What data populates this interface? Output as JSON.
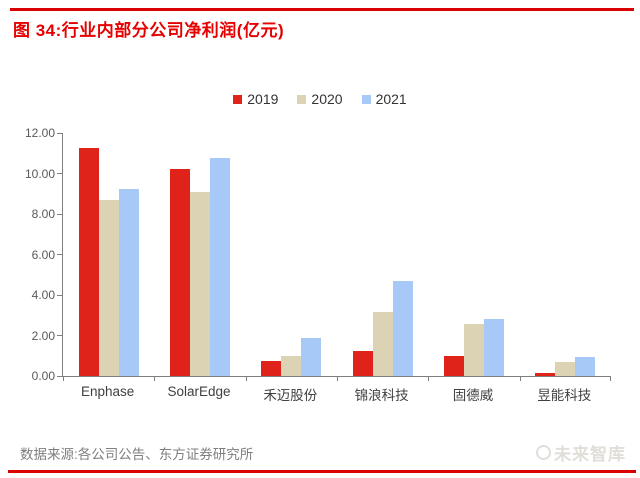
{
  "figure": {
    "title": "图 34:行业内部分公司净利润(亿元)",
    "source": "数据来源:各公司公告、东方证券研究所",
    "watermark": "未来智库"
  },
  "chart_data": {
    "type": "bar",
    "title": "行业内部分公司净利润(亿元)",
    "categories": [
      "Enphase",
      "SolarEdge",
      "禾迈股份",
      "锦浪科技",
      "固德威",
      "昱能科技"
    ],
    "series": [
      {
        "name": "2019",
        "color": "#e0231a",
        "values": [
          11.25,
          10.2,
          0.75,
          1.25,
          1.0,
          0.15
        ]
      },
      {
        "name": "2020",
        "color": "#dcd3b4",
        "values": [
          8.7,
          9.1,
          1.0,
          3.15,
          2.55,
          0.7
        ]
      },
      {
        "name": "2021",
        "color": "#a6c9f8",
        "values": [
          9.25,
          10.75,
          1.9,
          4.7,
          2.8,
          0.95
        ]
      }
    ],
    "xlabel": "",
    "ylabel": "",
    "ylim": [
      0,
      12
    ],
    "ytick_labels": [
      "0.00",
      "2.00",
      "4.00",
      "6.00",
      "8.00",
      "10.00",
      "12.00"
    ],
    "grid": false,
    "legend_position": "top-center"
  },
  "colors": {
    "accent_red": "#e60000",
    "rule_red": "#d80000",
    "axis_line": "#7f7f7f",
    "tick_text": "#595959",
    "category_text": "#404040",
    "source_text": "#7f7f7f"
  }
}
